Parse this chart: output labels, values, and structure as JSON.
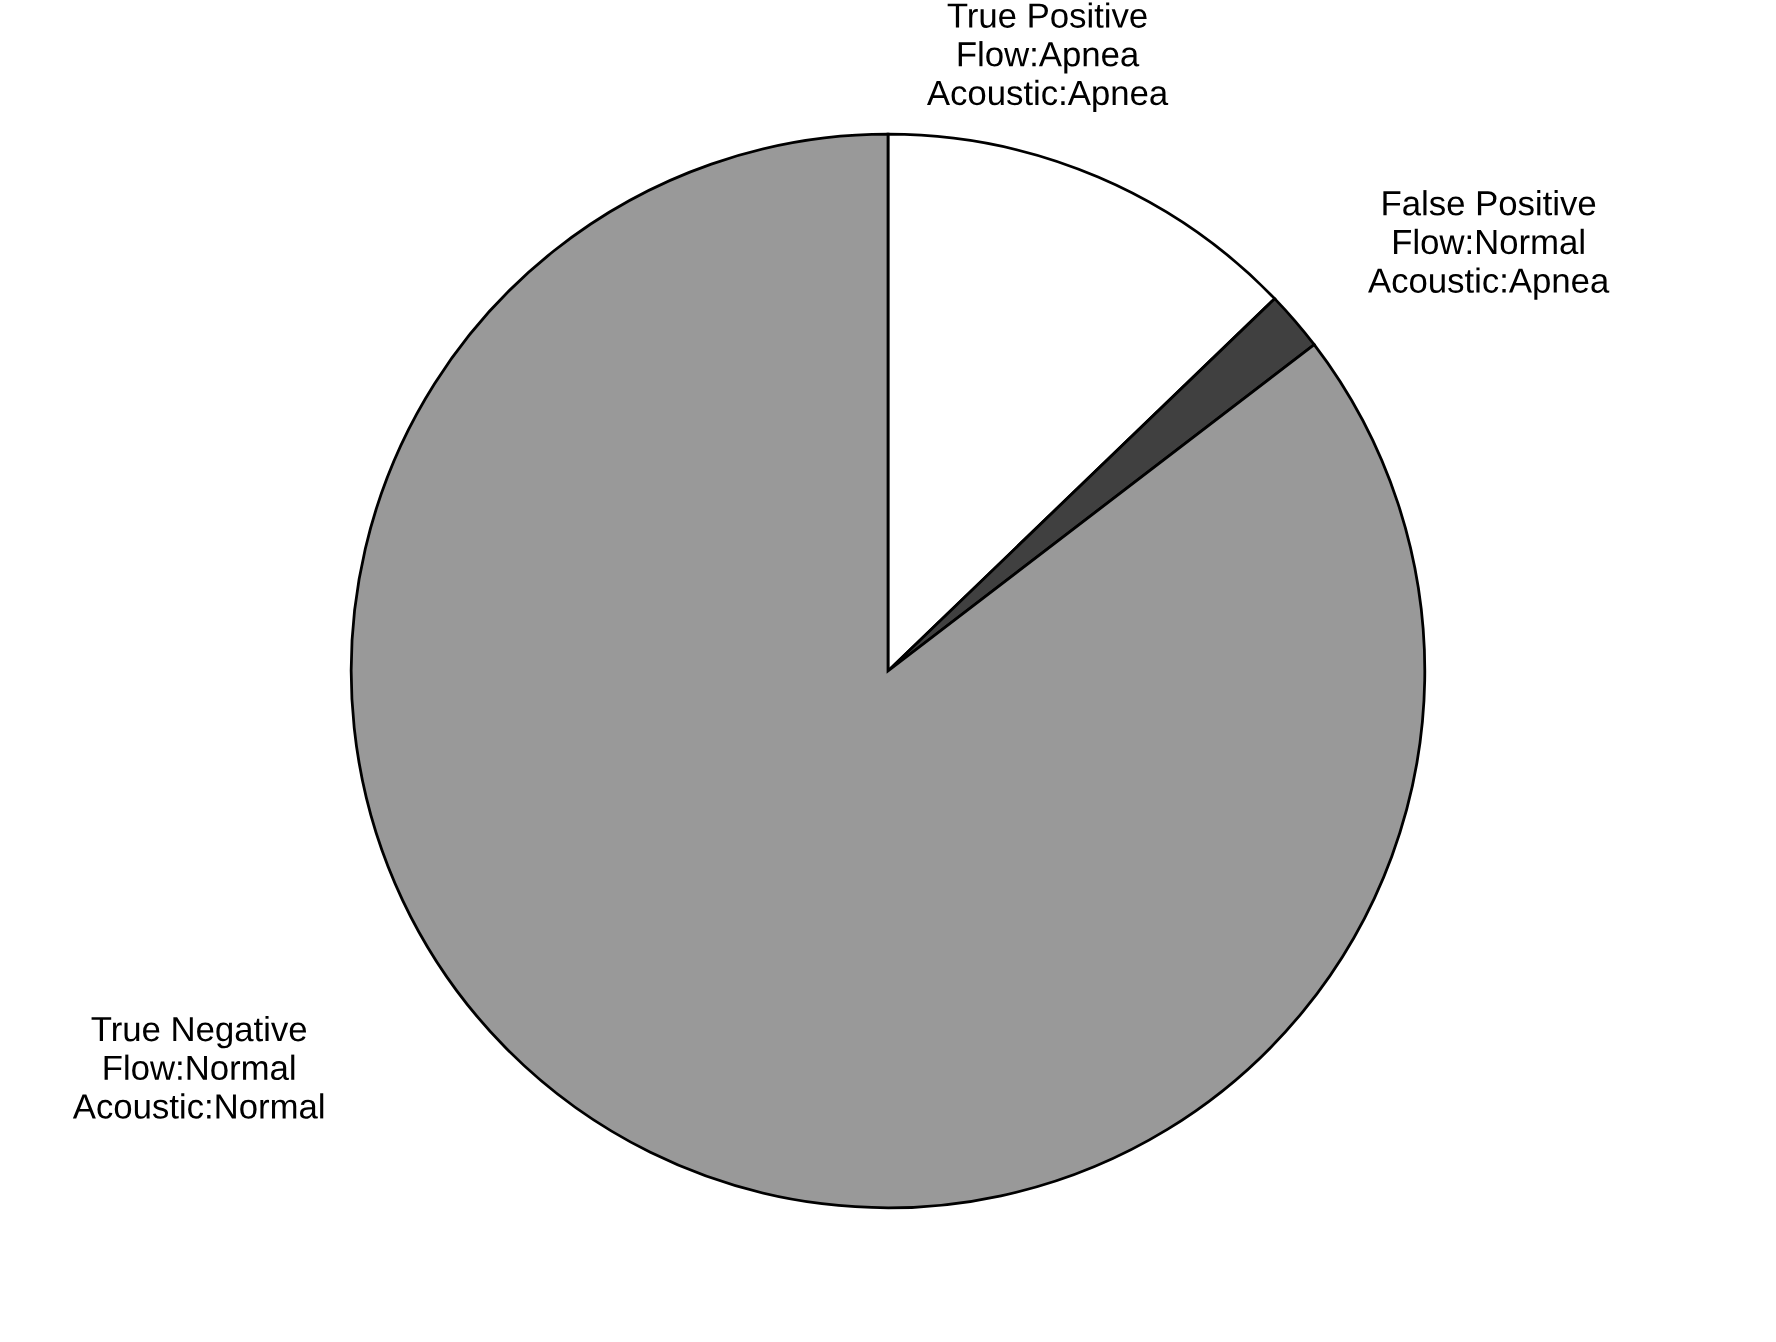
{
  "chart_data": {
    "type": "pie",
    "categories": [
      "True Positive\nFlow:Apnea\nAcoustic:Apnea",
      "False Positive\nFlow:Normal\nAcoustic:Apnea",
      "True Negative\nFlow:Normal\nAcoustic:Normal"
    ],
    "values": [
      12.8,
      1.8,
      85.4
    ],
    "colors": [
      "#ffffff",
      "#404040",
      "#999999"
    ],
    "legend": false
  }
}
